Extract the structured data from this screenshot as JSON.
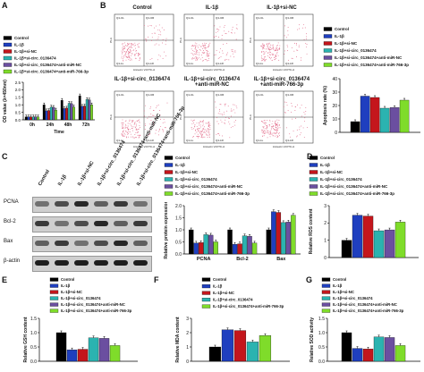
{
  "colors": {
    "control": "#000000",
    "il1b": "#1f3fbf",
    "il1b_si_nc": "#c4161c",
    "il1b_si_circ": "#2bb3b0",
    "il1b_si_circ_anti_nc": "#6b4fa0",
    "il1b_si_circ_anti_mir": "#7fdc2a",
    "dots": "#e06080"
  },
  "legend_items": [
    "Control",
    "IL-1β",
    "IL-1β+si-NC",
    "IL-1β+si-circ_0136474",
    "IL-1β+si-circ_0136474+anti-miR-NC",
    "IL-1β+si-circ_0136474+anti-miR-766-3p"
  ],
  "legend_items_5": [
    "Control",
    "IL-1β",
    "IL-1β+si-NC",
    "IL-1β+si-circ_0136474",
    "IL-1β+si-circ_0136474+anti-miR-766-3p"
  ],
  "panel_labels": {
    "a": "A",
    "b": "B",
    "c": "C",
    "d": "D",
    "e": "E",
    "f": "F",
    "g": "G"
  },
  "flow": {
    "titles": [
      "Control",
      "IL-1β",
      "IL-1β+si-NC",
      "IL-1β+si-circ_0136474",
      "IL-1β+si-circ_0136474\n+anti-miR-NC",
      "IL-1β+si-circ_0136474\n+anti-miR-766-3p"
    ],
    "quadrants": [
      "Q1-UL",
      "Q1-UR",
      "Q1-LL",
      "Q1-LR"
    ],
    "xaxis": "Annexin V-FITC-A",
    "yaxis": "PI-A"
  },
  "blot": {
    "lanes": [
      "Control",
      "IL-1β",
      "IL-1β+si-NC",
      "IL-1β+si-circ_0136474",
      "IL-1β+si-circ_0136474+anti-miR-NC",
      "IL-1β+si-circ_0136474+anti-miR-766-3p"
    ],
    "rows": [
      "PCNA",
      "Bcl-2",
      "Bax",
      "β-actin"
    ]
  },
  "chart_data": [
    {
      "id": "A",
      "type": "bar",
      "ylabel": "OD value (λ=450nm)",
      "xlabel": "Time",
      "categories": [
        "0h",
        "24h",
        "48h",
        "72h"
      ],
      "ylim": [
        0,
        2.5
      ],
      "yticks": [
        0.0,
        0.5,
        1.0,
        1.5,
        2.0,
        2.5
      ],
      "ytick_labels": [
        "0.0",
        "0.5",
        "1.0",
        "1.5",
        "2.0",
        "2.5"
      ],
      "series": [
        {
          "name": "Control",
          "values": [
            0.2,
            1.0,
            1.3,
            1.6
          ]
        },
        {
          "name": "IL-1β",
          "values": [
            0.2,
            0.6,
            0.75,
            0.9
          ]
        },
        {
          "name": "IL-1β+si-NC",
          "values": [
            0.2,
            0.62,
            0.78,
            0.92
          ]
        },
        {
          "name": "IL-1β+si-circ_0136474",
          "values": [
            0.2,
            0.85,
            1.1,
            1.35
          ]
        },
        {
          "name": "IL-1β+si-circ_0136474+anti-miR-NC",
          "values": [
            0.2,
            0.83,
            1.08,
            1.32
          ]
        },
        {
          "name": "IL-1β+si-circ_0136474+anti-miR-766-3p",
          "values": [
            0.2,
            0.65,
            0.85,
            1.0
          ]
        }
      ]
    },
    {
      "id": "B",
      "type": "bar",
      "ylabel": "Apoptosis rate (%)",
      "ylim": [
        0,
        40
      ],
      "yticks": [
        0,
        10,
        20,
        30,
        40
      ],
      "ytick_labels": [
        "0",
        "10",
        "20",
        "30",
        "40"
      ],
      "series": [
        {
          "name": "Control",
          "values": [
            8
          ]
        },
        {
          "name": "IL-1β",
          "values": [
            27
          ]
        },
        {
          "name": "IL-1β+si-NC",
          "values": [
            26
          ]
        },
        {
          "name": "IL-1β+si-circ_0136474",
          "values": [
            18
          ]
        },
        {
          "name": "IL-1β+si-circ_0136474+anti-miR-NC",
          "values": [
            18.5
          ]
        },
        {
          "name": "IL-1β+si-circ_0136474+anti-miR-766-3p",
          "values": [
            24
          ]
        }
      ]
    },
    {
      "id": "C",
      "type": "bar",
      "ylabel": "Relative protein expression",
      "categories": [
        "PCNA",
        "Bcl-2",
        "Bax"
      ],
      "ylim": [
        0,
        2.0
      ],
      "yticks": [
        0.0,
        0.5,
        1.0,
        1.5,
        2.0
      ],
      "ytick_labels": [
        "0.0",
        "0.5",
        "1.0",
        "1.5",
        "2.0"
      ],
      "series": [
        {
          "name": "Control",
          "values": [
            1.0,
            1.0,
            1.0
          ]
        },
        {
          "name": "IL-1β",
          "values": [
            0.45,
            0.4,
            1.75
          ]
        },
        {
          "name": "IL-1β+si-NC",
          "values": [
            0.47,
            0.42,
            1.72
          ]
        },
        {
          "name": "IL-1β+si-circ_0136474",
          "values": [
            0.8,
            0.75,
            1.3
          ]
        },
        {
          "name": "IL-1β+si-circ_0136474+anti-miR-NC",
          "values": [
            0.78,
            0.73,
            1.32
          ]
        },
        {
          "name": "IL-1β+si-circ_0136474+anti-miR-766-3p",
          "values": [
            0.5,
            0.45,
            1.6
          ]
        }
      ]
    },
    {
      "id": "D",
      "type": "bar",
      "ylabel": "Relative ROS content",
      "ylim": [
        0,
        3
      ],
      "yticks": [
        0,
        1,
        2,
        3
      ],
      "ytick_labels": [
        "0",
        "1",
        "2",
        "3"
      ],
      "series": [
        {
          "name": "Control",
          "values": [
            1.0
          ]
        },
        {
          "name": "IL-1β",
          "values": [
            2.45
          ]
        },
        {
          "name": "IL-1β+si-NC",
          "values": [
            2.4
          ]
        },
        {
          "name": "IL-1β+si-circ_0136474",
          "values": [
            1.55
          ]
        },
        {
          "name": "IL-1β+si-circ_0136474+anti-miR-NC",
          "values": [
            1.6
          ]
        },
        {
          "name": "IL-1β+si-circ_0136474+anti-miR-766-3p",
          "values": [
            2.05
          ]
        }
      ]
    },
    {
      "id": "E",
      "type": "bar",
      "ylabel": "Relative GSH content",
      "ylim": [
        0,
        1.5
      ],
      "yticks": [
        0.0,
        0.5,
        1.0,
        1.5
      ],
      "ytick_labels": [
        "0.0",
        "0.5",
        "1.0",
        "1.5"
      ],
      "series": [
        {
          "name": "Control",
          "values": [
            1.0
          ]
        },
        {
          "name": "IL-1β",
          "values": [
            0.4
          ]
        },
        {
          "name": "IL-1β+si-NC",
          "values": [
            0.42
          ]
        },
        {
          "name": "IL-1β+si-circ_0136474",
          "values": [
            0.82
          ]
        },
        {
          "name": "IL-1β+si-circ_0136474+anti-miR-NC",
          "values": [
            0.8
          ]
        },
        {
          "name": "IL-1β+si-circ_0136474+anti-miR-766-3p",
          "values": [
            0.55
          ]
        }
      ]
    },
    {
      "id": "F",
      "type": "bar",
      "ylabel": "Relative MDA content",
      "ylim": [
        0,
        3
      ],
      "yticks": [
        0,
        1,
        2,
        3
      ],
      "ytick_labels": [
        "0",
        "1",
        "2",
        "3"
      ],
      "series": [
        {
          "name": "Control",
          "values": [
            1.0
          ]
        },
        {
          "name": "IL-1β",
          "values": [
            2.2
          ]
        },
        {
          "name": "IL-1β+si-NC",
          "values": [
            2.15
          ]
        },
        {
          "name": "IL-1β+si-circ_0136474",
          "values": [
            1.35
          ]
        },
        {
          "name": "IL-1β+si-circ_0136474+anti-miR-766-3p",
          "values": [
            1.8
          ]
        }
      ]
    },
    {
      "id": "G",
      "type": "bar",
      "ylabel": "Relative SOD activity",
      "ylim": [
        0,
        1.5
      ],
      "yticks": [
        0.0,
        0.5,
        1.0,
        1.5
      ],
      "ytick_labels": [
        "0.0",
        "0.5",
        "1.0",
        "1.5"
      ],
      "series": [
        {
          "name": "Control",
          "values": [
            1.0
          ]
        },
        {
          "name": "IL-1β",
          "values": [
            0.45
          ]
        },
        {
          "name": "IL-1β+si-NC",
          "values": [
            0.43
          ]
        },
        {
          "name": "IL-1β+si-circ_0136474",
          "values": [
            0.85
          ]
        },
        {
          "name": "IL-1β+si-circ_0136474+anti-miR-NC",
          "values": [
            0.83
          ]
        },
        {
          "name": "IL-1β+si-circ_0136474+anti-miR-766-3p",
          "values": [
            0.55
          ]
        }
      ]
    }
  ]
}
